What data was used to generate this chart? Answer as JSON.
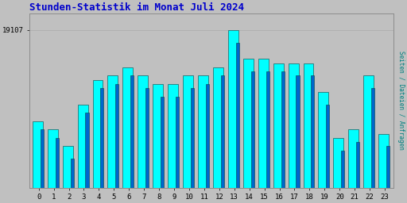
{
  "title": "Stunden-Statistik im Monat Juli 2024",
  "title_color": "#0000CC",
  "background_color": "#C0C0C0",
  "plot_bg_color": "#C0C0C0",
  "ylabel": "19107",
  "ylabel_right": "Seiten / Dateien / Anfragen",
  "ylabel_right_color": "#008080",
  "bar_color_cyan": "#00FFFF",
  "bar_color_blue": "#0066CC",
  "bar_outline_dark": "#004444",
  "hours": [
    0,
    1,
    2,
    3,
    4,
    5,
    6,
    7,
    8,
    9,
    10,
    11,
    12,
    13,
    14,
    15,
    16,
    17,
    18,
    19,
    20,
    21,
    22,
    23
  ],
  "values_cyan": [
    86,
    84,
    80,
    90,
    96,
    97,
    99,
    97,
    95,
    95,
    97,
    97,
    99,
    108,
    101,
    101,
    100,
    100,
    100,
    93,
    82,
    84,
    97,
    83
  ],
  "values_blue": [
    84,
    82,
    77,
    88,
    94,
    95,
    97,
    94,
    92,
    92,
    94,
    95,
    97,
    105,
    98,
    98,
    98,
    97,
    97,
    90,
    79,
    81,
    94,
    80
  ],
  "ymin": 70,
  "ymax": 112,
  "ytick_val": 108,
  "ytick_label": "19107"
}
